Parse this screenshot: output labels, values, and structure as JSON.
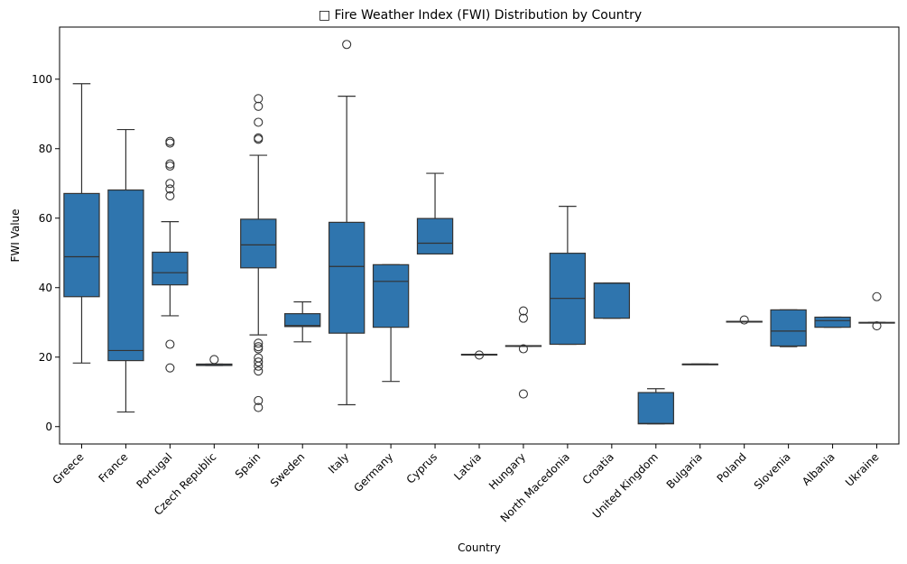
{
  "chart_data": {
    "type": "box",
    "title": "□ Fire Weather Index (FWI) Distribution by Country",
    "xlabel": "Country",
    "ylabel": "FWI Value",
    "ylim": [
      -5,
      115
    ],
    "yticks": [
      0,
      20,
      40,
      60,
      80,
      100
    ],
    "grid": false,
    "legend": "none",
    "box_color": "#2f75ae",
    "line_color": "#333333",
    "categories": [
      "Greece",
      "France",
      "Portugal",
      "Czech Republic",
      "Spain",
      "Sweden",
      "Italy",
      "Germany",
      "Cyprus",
      "Latvia",
      "Hungary",
      "North Macedonia",
      "Croatia",
      "United Kingdom",
      "Bulgaria",
      "Poland",
      "Slovenia",
      "Albania",
      "Ukraine"
    ],
    "boxes": [
      {
        "whislo": 18.3,
        "q1": 37.4,
        "med": 48.9,
        "q3": 67.1,
        "whishi": 98.7,
        "fliers": []
      },
      {
        "whislo": 4.2,
        "q1": 19.0,
        "med": 21.9,
        "q3": 68.1,
        "whishi": 85.5,
        "fliers": []
      },
      {
        "whislo": 31.9,
        "q1": 40.8,
        "med": 44.3,
        "q3": 50.2,
        "whishi": 59.0,
        "fliers": [
          16.9,
          23.7,
          66.4,
          68.4,
          70.0,
          75.0,
          75.6,
          81.6,
          82.1
        ]
      },
      {
        "whislo": 17.6,
        "q1": 17.6,
        "med": 17.9,
        "q3": 18.0,
        "whishi": 18.0,
        "fliers": [
          19.3
        ]
      },
      {
        "whislo": 26.4,
        "q1": 45.7,
        "med": 52.3,
        "q3": 59.7,
        "whishi": 78.1,
        "fliers": [
          5.5,
          7.5,
          16.0,
          17.4,
          18.6,
          19.8,
          22.4,
          23.0,
          24.0,
          82.7,
          83.1,
          87.6,
          92.2,
          94.4
        ]
      },
      {
        "whislo": 24.4,
        "q1": 28.8,
        "med": 29.1,
        "q3": 32.5,
        "whishi": 35.9,
        "fliers": []
      },
      {
        "whislo": 6.3,
        "q1": 26.9,
        "med": 46.1,
        "q3": 58.8,
        "whishi": 95.1,
        "fliers": [
          110.0
        ]
      },
      {
        "whislo": 13.0,
        "q1": 28.6,
        "med": 41.8,
        "q3": 46.6,
        "whishi": 46.6,
        "fliers": []
      },
      {
        "whislo": 49.7,
        "q1": 49.7,
        "med": 52.8,
        "q3": 59.9,
        "whishi": 72.9,
        "fliers": []
      },
      {
        "whislo": 20.8,
        "q1": 20.8,
        "med": 20.8,
        "q3": 20.8,
        "whishi": 20.8,
        "fliers": [
          20.6
        ]
      },
      {
        "whislo": 23.1,
        "q1": 23.1,
        "med": 23.2,
        "q3": 23.3,
        "whishi": 23.3,
        "fliers": [
          9.4,
          22.4,
          31.2,
          33.3
        ]
      },
      {
        "whislo": 23.7,
        "q1": 23.7,
        "med": 36.9,
        "q3": 49.9,
        "whishi": 63.4,
        "fliers": []
      },
      {
        "whislo": 31.2,
        "q1": 31.2,
        "med": 41.3,
        "q3": 41.3,
        "whishi": 41.3,
        "fliers": []
      },
      {
        "whislo": 0.8,
        "q1": 0.8,
        "med": 0.9,
        "q3": 9.8,
        "whishi": 10.9,
        "fliers": []
      },
      {
        "whislo": 18.0,
        "q1": 18.0,
        "med": 18.0,
        "q3": 18.0,
        "whishi": 18.0,
        "fliers": []
      },
      {
        "whislo": 30.3,
        "q1": 30.3,
        "med": 30.3,
        "q3": 30.3,
        "whishi": 30.3,
        "fliers": [
          30.7
        ]
      },
      {
        "whislo": 23.0,
        "q1": 23.2,
        "med": 27.5,
        "q3": 33.6,
        "whishi": 33.6,
        "fliers": []
      },
      {
        "whislo": 28.6,
        "q1": 28.6,
        "med": 30.5,
        "q3": 31.5,
        "whishi": 31.5,
        "fliers": []
      },
      {
        "whislo": 29.9,
        "q1": 29.9,
        "med": 29.9,
        "q3": 30.0,
        "whishi": 30.0,
        "fliers": [
          29.0,
          37.4
        ]
      }
    ]
  }
}
